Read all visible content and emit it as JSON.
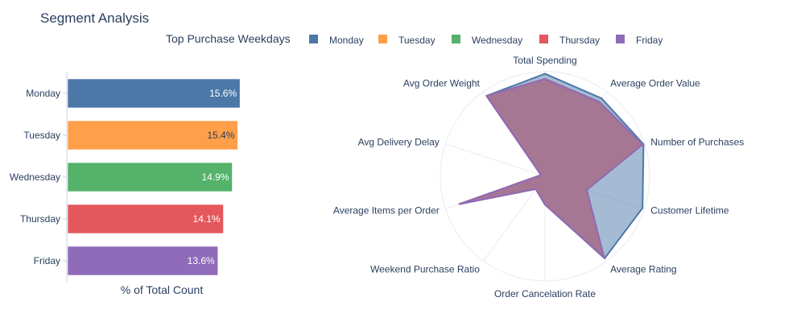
{
  "title": "Segment Analysis",
  "legend_title": "Top Purchase Weekdays",
  "colors": {
    "Monday": "#4c78a8",
    "Tuesday": "#ff9f4a",
    "Wednesday": "#54b26b",
    "Thursday": "#e4575c",
    "Friday": "#8f6bba"
  },
  "chart_data": [
    {
      "type": "bar",
      "orientation": "horizontal",
      "categories": [
        "Monday",
        "Tuesday",
        "Wednesday",
        "Thursday",
        "Friday"
      ],
      "values": [
        15.6,
        15.4,
        14.9,
        14.1,
        13.6
      ],
      "data_labels": [
        "15.6%",
        "15.4%",
        "14.9%",
        "14.1%",
        "13.6%"
      ],
      "xlabel": "% of Total Count",
      "xlim": [
        0,
        22
      ],
      "grid": false
    },
    {
      "type": "radar",
      "axes": [
        "Total Spending",
        "Average Order Value",
        "Number of Purchases",
        "Customer Lifetime",
        "Average Rating",
        "Order Cancelation Rate",
        "Weekend Purchase Ratio",
        "Average Items per Order",
        "Avg Delivery Delay",
        "Avg Order Weight"
      ],
      "rlim": [
        0,
        1
      ],
      "series": [
        {
          "name": "Monday",
          "values": [
            0.98,
            0.92,
            0.99,
            0.98,
            0.97,
            0.27,
            0.15,
            0.86,
            0.04,
            0.95
          ]
        },
        {
          "name": "Tuesday",
          "values": [
            0.93,
            0.88,
            0.98,
            0.42,
            0.96,
            0.27,
            0.15,
            0.86,
            0.04,
            0.95
          ]
        },
        {
          "name": "Wednesday",
          "values": [
            0.93,
            0.88,
            0.98,
            0.42,
            0.96,
            0.27,
            0.15,
            0.86,
            0.04,
            0.95
          ]
        },
        {
          "name": "Thursday",
          "values": [
            0.93,
            0.88,
            0.98,
            0.42,
            0.96,
            0.27,
            0.15,
            0.86,
            0.04,
            0.95
          ]
        },
        {
          "name": "Friday",
          "values": [
            0.93,
            0.88,
            0.98,
            0.42,
            0.96,
            0.27,
            0.15,
            0.86,
            0.04,
            0.95
          ]
        }
      ]
    }
  ]
}
